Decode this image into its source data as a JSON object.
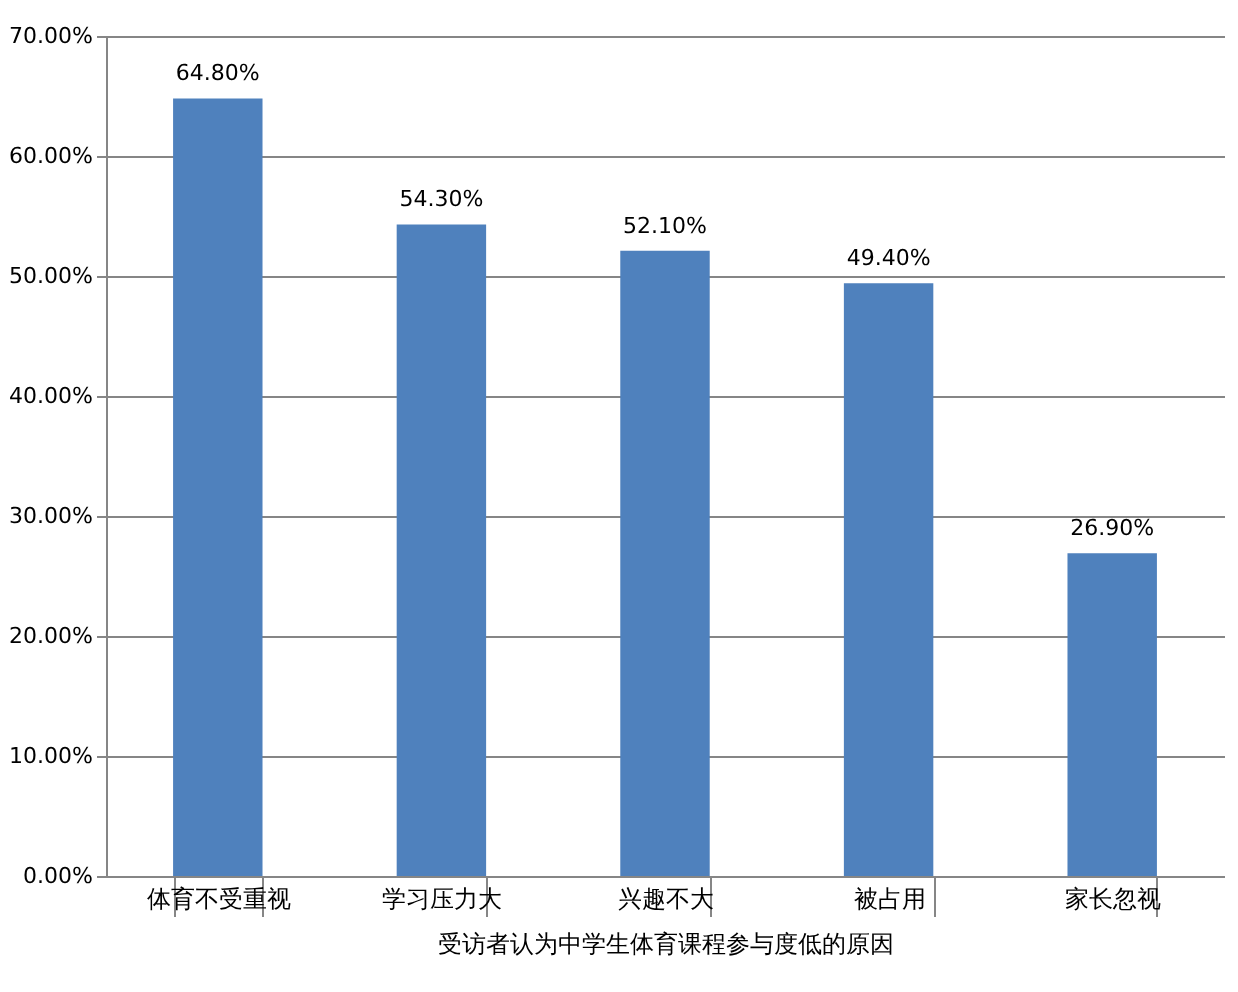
{
  "chart_data": {
    "type": "bar",
    "xlabel": "受访者认为中学生体育课程参与度低的原因",
    "categories": [
      "体育不受重视",
      "学习压力大",
      "兴趣不大",
      "被占用",
      "家长忽视"
    ],
    "values": [
      64.8,
      54.3,
      52.1,
      49.4,
      26.9
    ],
    "color": "#4f81bd",
    "value_labels": [
      "64.80%",
      "54.30%",
      "52.10%",
      "49.40%",
      "26.90%"
    ],
    "ylim": [
      0,
      70
    ],
    "yticks": [
      {
        "value": 0,
        "label": "0.00%"
      },
      {
        "value": 10,
        "label": "10.00%"
      },
      {
        "value": 20,
        "label": "20.00%"
      },
      {
        "value": 30,
        "label": "30.00%"
      },
      {
        "value": 40,
        "label": "40.00%"
      },
      {
        "value": 50,
        "label": "50.00%"
      },
      {
        "value": 60,
        "label": "60.00%"
      },
      {
        "value": 70,
        "label": "70.00%"
      }
    ],
    "grid": "y"
  }
}
